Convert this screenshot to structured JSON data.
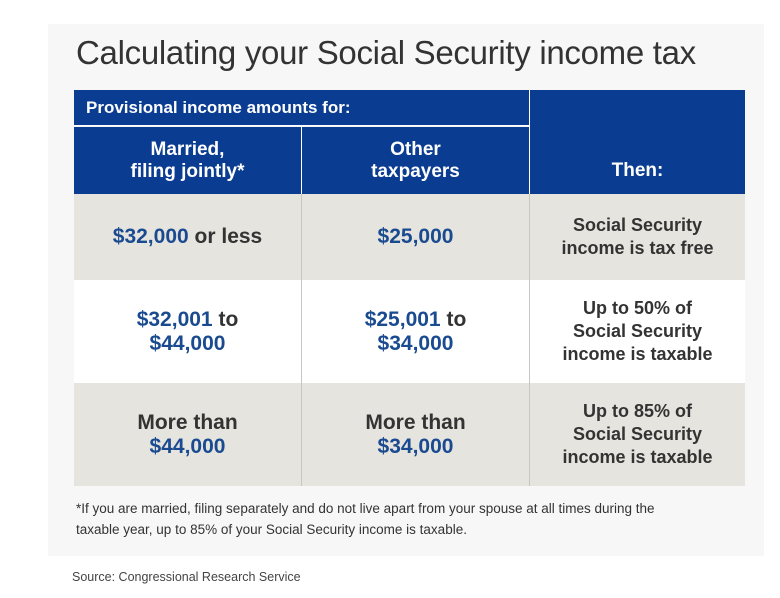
{
  "title": "Calculating your Social Security income tax",
  "table": {
    "header_group": "Provisional income amounts for:",
    "col1_lines": [
      "Married,",
      "filing jointly*"
    ],
    "col2_lines": [
      "Other",
      "taxpayers"
    ],
    "col3": "Then:",
    "rows": [
      {
        "c1": {
          "amount": "$32,000",
          "suffix": " or less"
        },
        "c2": {
          "amount": "$25,000"
        },
        "c3_lines": [
          "Social Security",
          "income is tax free"
        ]
      },
      {
        "c1": {
          "line1_amount": "$32,001",
          "line1_suffix": " to",
          "line2_amount": "$44,000"
        },
        "c2": {
          "line1_amount": "$25,001",
          "line1_suffix": " to",
          "line2_amount": "$34,000"
        },
        "c3_lines": [
          "Up to 50% of",
          "Social Security",
          "income is taxable"
        ]
      },
      {
        "c1": {
          "line1": "More than",
          "line2_amount": "$44,000"
        },
        "c2": {
          "line1": "More than",
          "line2_amount": "$34,000"
        },
        "c3_lines": [
          "Up to 85% of",
          "Social Security",
          "income is taxable"
        ]
      }
    ]
  },
  "footnote_lines": [
    "*If you are married, filing separately and do not live apart from your spouse at all times during the",
    "taxable year, up to 85% of your Social Security income is taxable."
  ],
  "source": "Source: Congressional Research Service",
  "colors": {
    "header_bg": "#0a3d91",
    "amount_blue": "#1a4a8f",
    "row_shade": "#e6e4df"
  }
}
